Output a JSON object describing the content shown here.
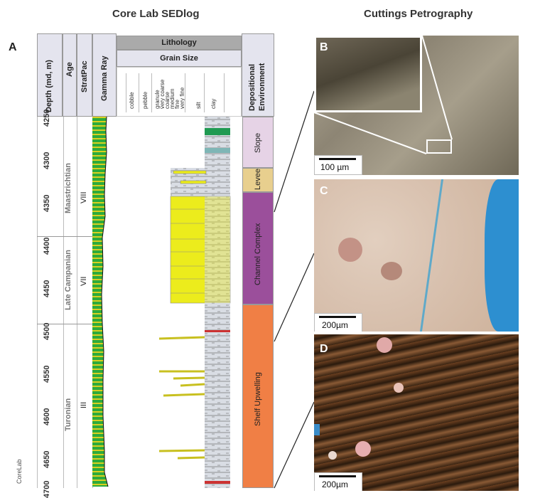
{
  "titles": {
    "left": "Core Lab SEDlog",
    "right": "Cuttings Petrography"
  },
  "panels": {
    "a": "A",
    "b": "B",
    "c": "C",
    "d": "D"
  },
  "headers": {
    "depth": "Depth (md, m)",
    "age": "Age",
    "stratpac": "StratPac",
    "gamma": "Gamma Ray",
    "lithology": "Lithology",
    "grain_size": "Grain Size",
    "environment": "Depositional Environment",
    "environment_line1": "Depositional",
    "environment_line2": "Environment"
  },
  "grain_sizes": [
    "cobble",
    "pebble",
    "granule",
    "very coarse",
    "coarse",
    "medium",
    "fine",
    "very fine",
    "silt",
    "clay"
  ],
  "depth_ticks": [
    "4250",
    "4300",
    "4350",
    "4400",
    "4450",
    "4500",
    "4550",
    "4600",
    "4650",
    "4700"
  ],
  "ages": [
    "Maastrichtian",
    "Late Campanian",
    "Turonian"
  ],
  "stratpac": [
    "VIII",
    "VII",
    "III"
  ],
  "environments": [
    {
      "name": "Slope",
      "color": "#e6d3e6"
    },
    {
      "name": "Levee",
      "color": "#e8cf8e"
    },
    {
      "name": "Channel Complex",
      "color": "#9b4f9b"
    },
    {
      "name": "Shelf Upwelling",
      "color": "#f07f45"
    }
  ],
  "scale_bars": {
    "b": "100 µm",
    "c": "200µm",
    "d": "200µm"
  },
  "watermark": "CoreLab",
  "colors": {
    "header_bg": "#e4e4ee",
    "gamma_green": "#2eaa3c",
    "gamma_yellow": "#d8d020",
    "sand_yellow": "#ecec1c"
  }
}
